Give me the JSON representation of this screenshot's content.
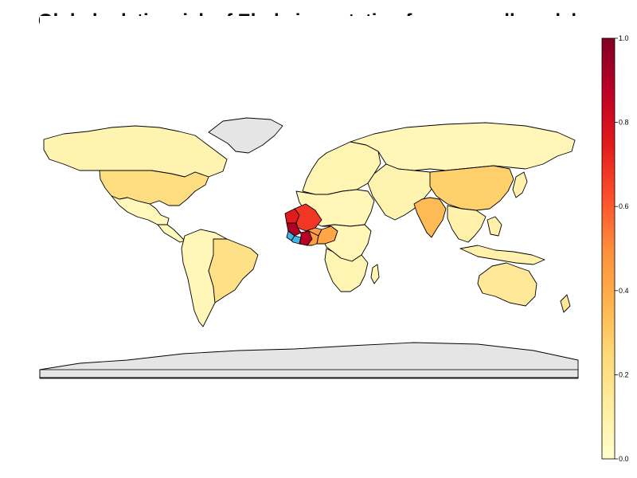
{
  "map": {
    "title": "Global relative risk of Ebola importation from overall model",
    "legend": {
      "ticks": [
        "0.0",
        "0.2",
        "0.4",
        "0.6",
        "0.8",
        "1.0"
      ],
      "tick_values": [
        0,
        0.2,
        0.4,
        0.6,
        0.8,
        1.0
      ],
      "stops": [
        "#ffffcc",
        "#ffeda0",
        "#fed976",
        "#feb24c",
        "#fd8d3c",
        "#fc4e2a",
        "#e31a1c",
        "#bd0026",
        "#800026"
      ]
    },
    "colors": {
      "base": "#fff7bc",
      "no_data": "#e5e5e5",
      "outbreak_origin": "#41b6e6",
      "ocean": "#ffffff"
    },
    "regions": [
      {
        "name": "Canada",
        "risk": 0.08
      },
      {
        "name": "United States",
        "risk": 0.22
      },
      {
        "name": "Mexico",
        "risk": 0.05
      },
      {
        "name": "Central America",
        "risk": 0.04
      },
      {
        "name": "South America",
        "risk": 0.06
      },
      {
        "name": "Brazil",
        "risk": 0.2
      },
      {
        "name": "Greenland",
        "risk": null
      },
      {
        "name": "Europe",
        "risk": 0.07
      },
      {
        "name": "Russia",
        "risk": 0.06
      },
      {
        "name": "North Africa",
        "risk": 0.06
      },
      {
        "name": "Mali",
        "risk": 0.68
      },
      {
        "name": "Senegal",
        "risk": 0.75
      },
      {
        "name": "Guinea",
        "risk": 0.9
      },
      {
        "name": "Sierra Leone",
        "risk": null,
        "origin": true
      },
      {
        "name": "Liberia",
        "risk": null,
        "origin": true
      },
      {
        "name": "Cote d'Ivoire",
        "risk": 0.88
      },
      {
        "name": "Burkina Faso",
        "risk": 0.45
      },
      {
        "name": "Ghana",
        "risk": 0.45
      },
      {
        "name": "Nigeria",
        "risk": 0.42
      },
      {
        "name": "Central Africa",
        "risk": 0.06
      },
      {
        "name": "Southern Africa",
        "risk": 0.07
      },
      {
        "name": "Middle East",
        "risk": 0.08
      },
      {
        "name": "India",
        "risk": 0.35
      },
      {
        "name": "China",
        "risk": 0.28
      },
      {
        "name": "Southeast Asia",
        "risk": 0.1
      },
      {
        "name": "Australia",
        "risk": 0.15
      },
      {
        "name": "Antarctica",
        "risk": null
      }
    ]
  }
}
